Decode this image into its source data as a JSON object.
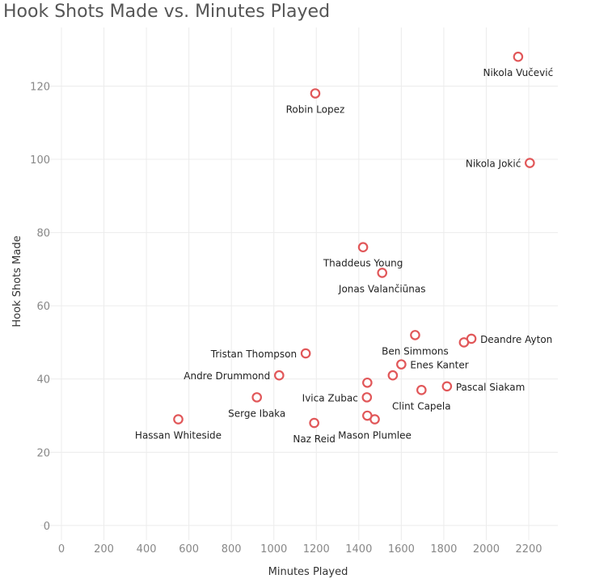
{
  "chart_data": {
    "type": "scatter",
    "title": "Hook Shots Made vs. Minutes Played",
    "xlabel": "Minutes Played",
    "ylabel": "Hook Shots Made",
    "xlim": [
      0,
      2350
    ],
    "ylim": [
      -4,
      136
    ],
    "xticks": [
      0,
      200,
      400,
      600,
      800,
      1000,
      1200,
      1400,
      1600,
      1800,
      2000,
      2200
    ],
    "yticks": [
      0,
      20,
      40,
      60,
      80,
      100,
      120
    ],
    "grid": true,
    "marker_color": "#e15759",
    "points": [
      {
        "name": "Nikola Vučević",
        "x": 2150,
        "y": 128,
        "label_pos": "below"
      },
      {
        "name": "Robin Lopez",
        "x": 1195,
        "y": 118,
        "label_pos": "below"
      },
      {
        "name": "Nikola Jokić",
        "x": 2205,
        "y": 99,
        "label_pos": "left"
      },
      {
        "name": "Thaddeus Young",
        "x": 1420,
        "y": 76,
        "label_pos": "below"
      },
      {
        "name": "Jonas Valančiūnas",
        "x": 1510,
        "y": 69,
        "label_pos": "below"
      },
      {
        "name": "Ben Simmons",
        "x": 1665,
        "y": 52,
        "label_pos": "below"
      },
      {
        "name": "Deandre Ayton",
        "x": 1930,
        "y": 51,
        "label_pos": "right"
      },
      {
        "name": "",
        "x": 1895,
        "y": 50,
        "label_pos": "none"
      },
      {
        "name": "Tristan Thompson",
        "x": 1150,
        "y": 47,
        "label_pos": "left"
      },
      {
        "name": "Enes Kanter",
        "x": 1600,
        "y": 44,
        "label_pos": "right"
      },
      {
        "name": "",
        "x": 1560,
        "y": 41,
        "label_pos": "none"
      },
      {
        "name": "Andre Drummond",
        "x": 1025,
        "y": 41,
        "label_pos": "left"
      },
      {
        "name": "",
        "x": 1440,
        "y": 39,
        "label_pos": "none"
      },
      {
        "name": "Pascal Siakam",
        "x": 1815,
        "y": 38,
        "label_pos": "right"
      },
      {
        "name": "Clint Capela",
        "x": 1695,
        "y": 37,
        "label_pos": "below"
      },
      {
        "name": "Ivica Zubac",
        "x": 1438,
        "y": 35,
        "label_pos": "left"
      },
      {
        "name": "Serge Ibaka",
        "x": 920,
        "y": 35,
        "label_pos": "below"
      },
      {
        "name": "Mason Plumlee",
        "x": 1475,
        "y": 29,
        "label_pos": "below"
      },
      {
        "name": "",
        "x": 1440,
        "y": 30,
        "label_pos": "none"
      },
      {
        "name": "Hassan Whiteside",
        "x": 550,
        "y": 29,
        "label_pos": "below"
      },
      {
        "name": "Naz Reid",
        "x": 1190,
        "y": 28,
        "label_pos": "below"
      }
    ]
  }
}
